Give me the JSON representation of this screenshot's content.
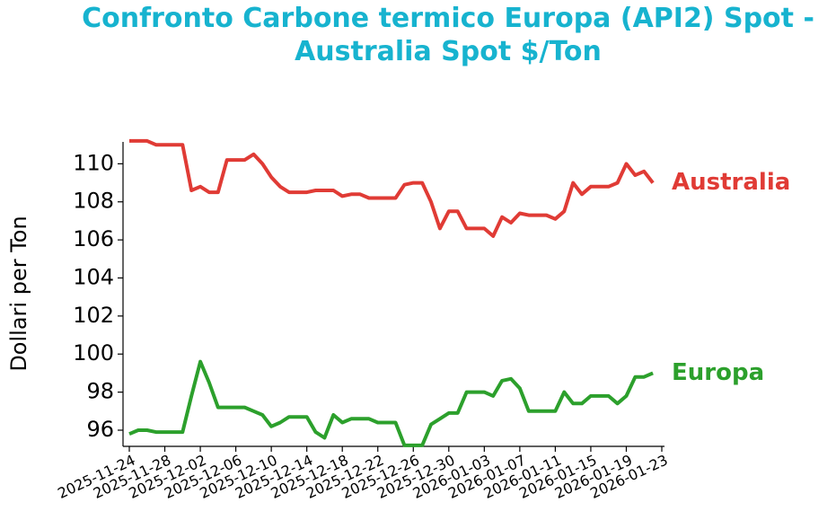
{
  "chart_data": {
    "type": "line",
    "title": "Confronto Carbone termico Europa (API2) Spot - Australia Spot $/Ton",
    "ylabel": "Dollari per Ton",
    "title_color": "#17b3cf",
    "x": [
      "2025-11-24",
      "2025-11-25",
      "2025-11-26",
      "2025-11-27",
      "2025-11-28",
      "2025-11-29",
      "2025-11-30",
      "2025-12-01",
      "2025-12-02",
      "2025-12-03",
      "2025-12-04",
      "2025-12-05",
      "2025-12-06",
      "2025-12-07",
      "2025-12-08",
      "2025-12-09",
      "2025-12-10",
      "2025-12-11",
      "2025-12-12",
      "2025-12-13",
      "2025-12-14",
      "2025-12-15",
      "2025-12-16",
      "2025-12-17",
      "2025-12-18",
      "2025-12-19",
      "2025-12-20",
      "2025-12-21",
      "2025-12-22",
      "2025-12-23",
      "2025-12-24",
      "2025-12-25",
      "2025-12-26",
      "2025-12-27",
      "2025-12-28",
      "2025-12-29",
      "2025-12-30",
      "2025-12-31",
      "2026-01-01",
      "2026-01-02",
      "2026-01-03",
      "2026-01-04",
      "2026-01-05",
      "2026-01-06",
      "2026-01-07",
      "2026-01-08",
      "2026-01-09",
      "2026-01-10",
      "2026-01-11",
      "2026-01-12",
      "2026-01-13",
      "2026-01-14",
      "2026-01-15",
      "2026-01-16",
      "2026-01-17",
      "2026-01-18",
      "2026-01-19",
      "2026-01-20",
      "2026-01-21",
      "2026-01-22"
    ],
    "xticks": [
      "2025-11-24",
      "2025-11-28",
      "2025-12-02",
      "2025-12-06",
      "2025-12-10",
      "2025-12-14",
      "2025-12-18",
      "2025-12-22",
      "2025-12-26",
      "2025-12-30",
      "2026-01-03",
      "2026-01-07",
      "2026-01-11",
      "2026-01-15",
      "2026-01-19",
      "2026-01-23"
    ],
    "xlim": [
      "2025-11-24",
      "2026-01-23"
    ],
    "series": [
      {
        "name": "Australia",
        "color": "#e03b35",
        "values": [
          111.2,
          111.2,
          111.2,
          111.0,
          111.0,
          111.0,
          111.0,
          108.6,
          108.8,
          108.5,
          108.5,
          110.2,
          110.2,
          110.2,
          110.5,
          110.0,
          109.3,
          108.8,
          108.5,
          108.5,
          108.5,
          108.6,
          108.6,
          108.6,
          108.3,
          108.4,
          108.4,
          108.2,
          108.2,
          108.2,
          108.2,
          108.9,
          109.0,
          109.0,
          108.0,
          106.6,
          107.5,
          107.5,
          106.6,
          106.6,
          106.6,
          106.2,
          107.2,
          106.9,
          107.4,
          107.3,
          107.3,
          107.3,
          107.1,
          107.5,
          109.0,
          108.4,
          108.8,
          108.8,
          108.8,
          109.0,
          110.0,
          109.4,
          109.6,
          109.0
        ]
      },
      {
        "name": "Europa",
        "color": "#2ca02c",
        "values": [
          95.8,
          96.0,
          96.0,
          95.9,
          95.9,
          95.9,
          95.9,
          97.8,
          99.6,
          98.5,
          97.2,
          97.2,
          97.2,
          97.2,
          97.0,
          96.8,
          96.2,
          96.4,
          96.7,
          96.7,
          96.7,
          95.9,
          95.6,
          96.8,
          96.4,
          96.6,
          96.6,
          96.6,
          96.4,
          96.4,
          96.4,
          95.2,
          95.2,
          95.2,
          96.3,
          96.6,
          96.9,
          96.9,
          98.0,
          98.0,
          98.0,
          97.8,
          98.6,
          98.7,
          98.2,
          97.0,
          97.0,
          97.0,
          97.0,
          98.0,
          97.4,
          97.4,
          97.8,
          97.8,
          97.8,
          97.4,
          97.8,
          98.8,
          98.8,
          99.0
        ]
      }
    ],
    "ylim": [
      95.15,
      111.15
    ],
    "yticks": [
      96,
      98,
      100,
      102,
      104,
      106,
      108,
      110
    ]
  }
}
